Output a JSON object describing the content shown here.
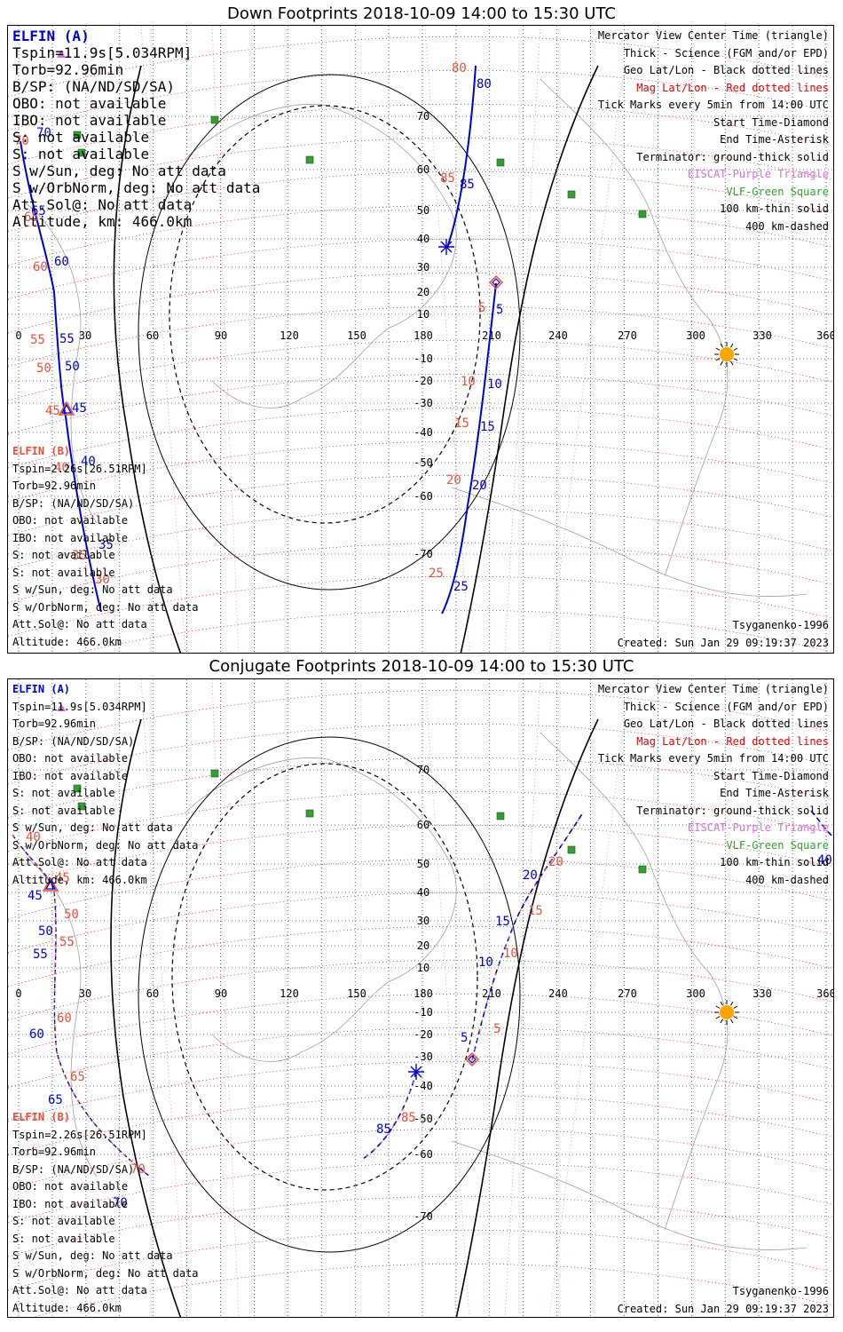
{
  "panels": [
    {
      "title": "Down Footprints 2018-10-09 14:00 to 15:30 UTC",
      "elfin_a": {
        "name": "ELFIN (A)",
        "lines": [
          "Tspin=11.9s[5.034RPM]",
          "Torb=92.96min",
          "B/SP: (NA/ND/SD/SA)",
          "OBO: not available",
          "IBO: not available",
          "S: not available",
          "S: not available",
          "S w/Sun, deg: No att data",
          "S w/OrbNorm, deg: No att data",
          "Att.Sol@: No att data",
          "Altitude, km: 466.0km"
        ]
      },
      "elfin_b": {
        "name": "ELFIN (B)",
        "lines": [
          "Tspin=2.26s[26.51RPM]",
          "Torb=92.96min",
          "B/SP: (NA/ND/SD/SA)",
          "OBO: not available",
          "IBO: not available",
          "S: not available",
          "S: not available",
          "S w/Sun, deg: No att data",
          "S w/OrbNorm, deg: No att data",
          "Att.Sol@: No att data",
          "Altitude: 466.0km"
        ]
      },
      "legend": [
        "Mercator View Center Time (triangle)",
        "Thick - Science (FGM and/or EPD)",
        "Geo Lat/Lon - Black dotted lines",
        "Mag Lat/Lon - Red dotted lines",
        "Tick Marks every 5min from 14:00 UTC",
        "Start Time-Diamond",
        "End Time-Asterisk",
        "Terminator: ground-thick solid",
        "EISCAT-Purple Triangle",
        "VLF-Green Square",
        "100 km-thin solid",
        "400 km-dashed"
      ],
      "model": "Tsyganenko-1996",
      "created": "Created: Sun Jan 29 09:19:37 2023",
      "a_ticks": [
        "70",
        "65",
        "60",
        "55",
        "50",
        "45",
        "40",
        "35",
        "80",
        "85",
        "5",
        "10",
        "15",
        "20",
        "25"
      ],
      "b_ticks": [
        "70",
        "65",
        "60",
        "55",
        "50",
        "45",
        "40",
        "35",
        "30",
        "80",
        "85",
        "5",
        "10",
        "15",
        "20",
        "25"
      ]
    },
    {
      "title": "Conjugate Footprints 2018-10-09 14:00 to 15:30 UTC",
      "elfin_a": {
        "name": "ELFIN (A)",
        "lines": [
          "Tspin=11.9s[5.034RPM]",
          "Torb=92.96min",
          "B/SP: (NA/ND/SD/SA)",
          "OBO: not available",
          "IBO: not available",
          "S: not available",
          "S: not available",
          "S w/Sun, deg: No att data",
          "S w/OrbNorm, deg: No att data",
          "Att.Sol@: No att data",
          "Altitude, km: 466.0km"
        ]
      },
      "elfin_b": {
        "name": "ELFIN (B)",
        "lines": [
          "Tspin=2.26s[26.51RPM]",
          "Torb=92.96min",
          "B/SP: (NA/ND/SD/SA)",
          "OBO: not available",
          "IBO: not available",
          "S: not available",
          "S: not available",
          "S w/Sun, deg: No att data",
          "S w/OrbNorm, deg: No att data",
          "Att.Sol@: No att data",
          "Altitude: 466.0km"
        ]
      },
      "legend": [
        "Mercator View Center Time (triangle)",
        "Thick - Science (FGM and/or EPD)",
        "Geo Lat/Lon - Black dotted lines",
        "Mag Lat/Lon - Red dotted lines",
        "Tick Marks every 5min from 14:00 UTC",
        "Start Time-Diamond",
        "End Time-Asterisk",
        "Terminator: ground-thick solid",
        "EISCAT-Purple Triangle",
        "VLF-Green Square",
        "100 km-thin solid",
        "400 km-dashed"
      ],
      "model": "Tsyganenko-1996",
      "created": "Created: Sun Jan 29 09:19:37 2023",
      "a_ticks": [
        "45",
        "50",
        "55",
        "60",
        "65",
        "70",
        "40",
        "85",
        "5",
        "10",
        "15",
        "20"
      ],
      "b_ticks": [
        "45",
        "50",
        "55",
        "60",
        "65",
        "70",
        "40",
        "85",
        "5",
        "10",
        "15",
        "20"
      ]
    }
  ],
  "lon_labels": [
    "0",
    "30",
    "60",
    "90",
    "120",
    "150",
    "180",
    "210",
    "240",
    "270",
    "300",
    "330",
    "360"
  ],
  "lat_labels": [
    "70",
    "60",
    "50",
    "40",
    "30",
    "20",
    "10",
    "-10",
    "-20",
    "-30",
    "-40",
    "-50",
    "-60",
    "-70"
  ],
  "colors": {
    "elfin_a": "#0000cc",
    "elfin_b": "#e8503a",
    "mag_grid": "#e00000",
    "geo_grid": "#000000",
    "eiscat": "#d070d0",
    "vlf": "#30a030",
    "sun": "#ffa500",
    "coast": "#a0a0a0"
  }
}
